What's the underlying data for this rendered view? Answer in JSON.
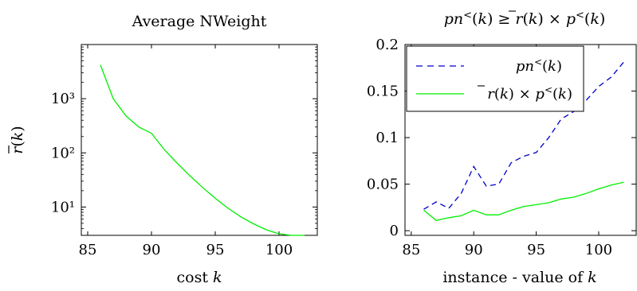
{
  "chart_data": [
    {
      "type": "line",
      "title": "Average NWeight",
      "xlabel": "cost k",
      "ylabel": "r̄(k)",
      "xlim": [
        84.5,
        103
      ],
      "ylim": [
        3,
        10000
      ],
      "yscale": "log",
      "xticks": [
        85,
        90,
        95,
        100
      ],
      "xtick_labels": [
        "85",
        "90",
        "95",
        "100"
      ],
      "yticks": [
        10,
        100,
        1000
      ],
      "ytick_labels": [
        "10¹",
        "10²",
        "10³"
      ],
      "grid": false,
      "series": [
        {
          "color": "#00ee00",
          "style": "solid",
          "x": [
            86,
            87,
            88,
            89,
            90,
            91,
            92,
            93,
            94,
            95,
            96,
            97,
            98,
            99,
            100,
            101,
            102
          ],
          "y": [
            4200,
            1000,
            480,
            300,
            230,
            115,
            65,
            38,
            23,
            14.5,
            9.5,
            6.6,
            4.9,
            3.8,
            3.2,
            2.5,
            2.1
          ]
        }
      ]
    },
    {
      "type": "line",
      "title": "pn<(k) ≥ r̄(k) × p<(k)",
      "xlabel": "instance - value of k",
      "ylabel": "",
      "xlim": [
        84.5,
        103
      ],
      "ylim": [
        -0.005,
        0.2
      ],
      "xticks": [
        85,
        90,
        95,
        100
      ],
      "xtick_labels": [
        "85",
        "90",
        "95",
        "100"
      ],
      "yticks": [
        0,
        0.05,
        0.1,
        0.15,
        0.2
      ],
      "ytick_labels": [
        "0",
        "0.05",
        "0.1",
        "0.15",
        "0.2"
      ],
      "grid": false,
      "legend": "top-left",
      "series": [
        {
          "name": "pn<(k)",
          "color": "#0000cc",
          "style": "dashed",
          "x": [
            86,
            87,
            88,
            89,
            90,
            91,
            92,
            93,
            94,
            95,
            96,
            97,
            98,
            99,
            100,
            101,
            102
          ],
          "y": [
            0.023,
            0.031,
            0.024,
            0.04,
            0.069,
            0.048,
            0.05,
            0.073,
            0.08,
            0.084,
            0.1,
            0.12,
            0.128,
            0.14,
            0.155,
            0.165,
            0.181
          ]
        },
        {
          "name": "r̄(k) × p<(k)",
          "color": "#00ee00",
          "style": "solid",
          "x": [
            86,
            87,
            88,
            89,
            90,
            91,
            92,
            93,
            94,
            95,
            96,
            97,
            98,
            99,
            100,
            101,
            102
          ],
          "y": [
            0.022,
            0.011,
            0.014,
            0.016,
            0.022,
            0.017,
            0.017,
            0.022,
            0.026,
            0.028,
            0.03,
            0.034,
            0.036,
            0.04,
            0.045,
            0.049,
            0.052
          ]
        }
      ]
    }
  ]
}
